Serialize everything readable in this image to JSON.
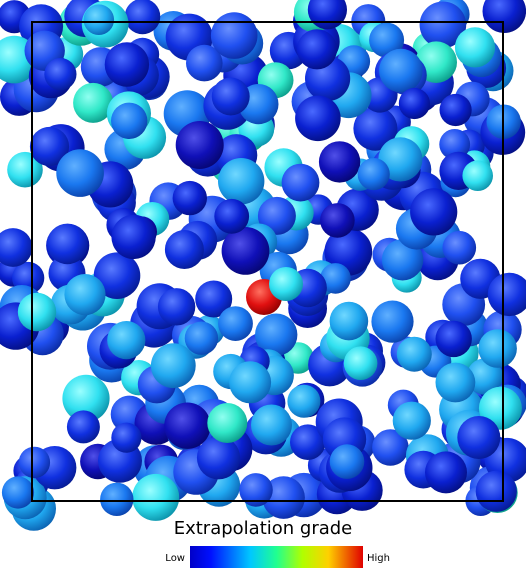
{
  "colorbar": {
    "title": "Extrapolation grade",
    "low_label": "Low",
    "high_label": "High"
  }
}
